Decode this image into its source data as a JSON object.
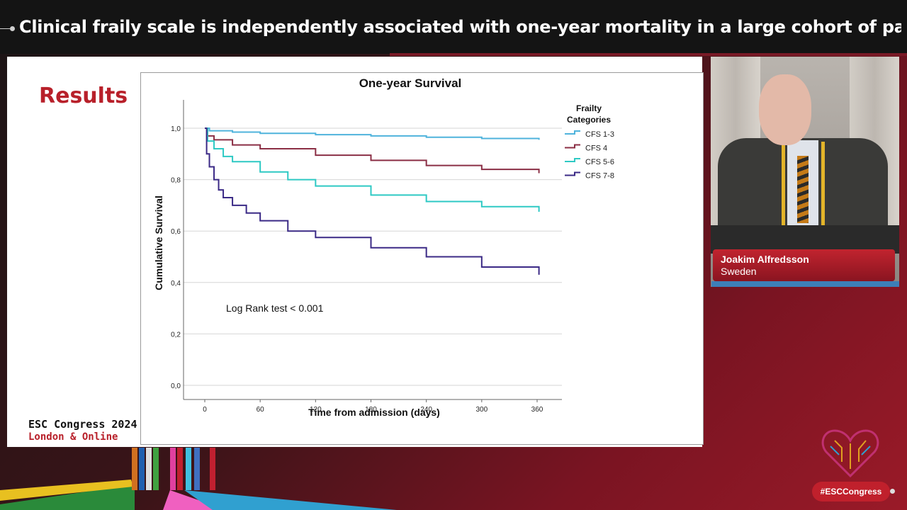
{
  "video": {
    "title": "Clinical fraily scale is independently associated with one-year mortality in a large cohort of patients..."
  },
  "slide": {
    "heading": "Results",
    "congress_line1": "ESC Congress 2024",
    "congress_line2": "London & Online"
  },
  "speaker": {
    "name": "Joakim Alfredsson",
    "country": "Sweden"
  },
  "footer": {
    "hashtag": "#ESCCongress"
  },
  "colors": {
    "esc_red": "#b8202a",
    "cfs_1_3": "#4fb3dc",
    "cfs_4": "#8b2f45",
    "cfs_5_6": "#2ec9c4",
    "cfs_7_8": "#3b2a86"
  },
  "chart_data": {
    "type": "line",
    "title": "One-year Survival",
    "xlabel": "Time from admission (days)",
    "ylabel": "Cumulative Survival",
    "xlim": [
      0,
      360
    ],
    "ylim": [
      0.0,
      1.0
    ],
    "x_ticks": [
      "0",
      "60",
      "120",
      "180",
      "240",
      "300",
      "360"
    ],
    "y_ticks": [
      "0,0",
      "0,2",
      "0,4",
      "0,6",
      "0,8",
      "1,0"
    ],
    "legend_title": "Frailty Categories",
    "legend_position": "right",
    "grid": "horizontal",
    "annotation": "Log Rank test < 0.001",
    "series": [
      {
        "name": "CFS 1-3",
        "color": "#4fb3dc",
        "x": [
          0,
          5,
          30,
          60,
          120,
          180,
          240,
          300,
          362
        ],
        "y": [
          1.0,
          0.99,
          0.985,
          0.98,
          0.975,
          0.97,
          0.965,
          0.96,
          0.955
        ]
      },
      {
        "name": "CFS 4",
        "color": "#8b2f45",
        "x": [
          0,
          3,
          10,
          30,
          60,
          120,
          180,
          240,
          300,
          362
        ],
        "y": [
          1.0,
          0.97,
          0.955,
          0.935,
          0.92,
          0.895,
          0.875,
          0.855,
          0.84,
          0.825
        ]
      },
      {
        "name": "CFS 5-6",
        "color": "#2ec9c4",
        "x": [
          0,
          3,
          10,
          20,
          30,
          60,
          90,
          120,
          180,
          240,
          300,
          362
        ],
        "y": [
          1.0,
          0.95,
          0.92,
          0.89,
          0.87,
          0.83,
          0.8,
          0.775,
          0.74,
          0.715,
          0.695,
          0.675
        ]
      },
      {
        "name": "CFS 7-8",
        "color": "#3b2a86",
        "x": [
          0,
          2,
          5,
          10,
          15,
          20,
          30,
          45,
          60,
          90,
          120,
          180,
          240,
          300,
          362
        ],
        "y": [
          1.0,
          0.9,
          0.85,
          0.8,
          0.76,
          0.73,
          0.7,
          0.67,
          0.64,
          0.6,
          0.575,
          0.535,
          0.5,
          0.46,
          0.43
        ]
      }
    ]
  }
}
